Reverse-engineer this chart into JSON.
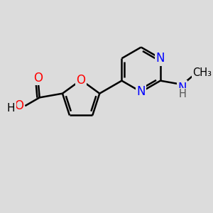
{
  "bg_color": "#dcdcdc",
  "bond_color": "#000000",
  "bond_width": 1.8,
  "atom_colors": {
    "O": "#ff0000",
    "N": "#0000ff",
    "C": "#000000",
    "H": "#555555"
  },
  "font_size": 12,
  "fig_width": 3.0,
  "fig_height": 3.0,
  "xlim": [
    0.3,
    4.5
  ],
  "ylim": [
    1.2,
    3.8
  ]
}
